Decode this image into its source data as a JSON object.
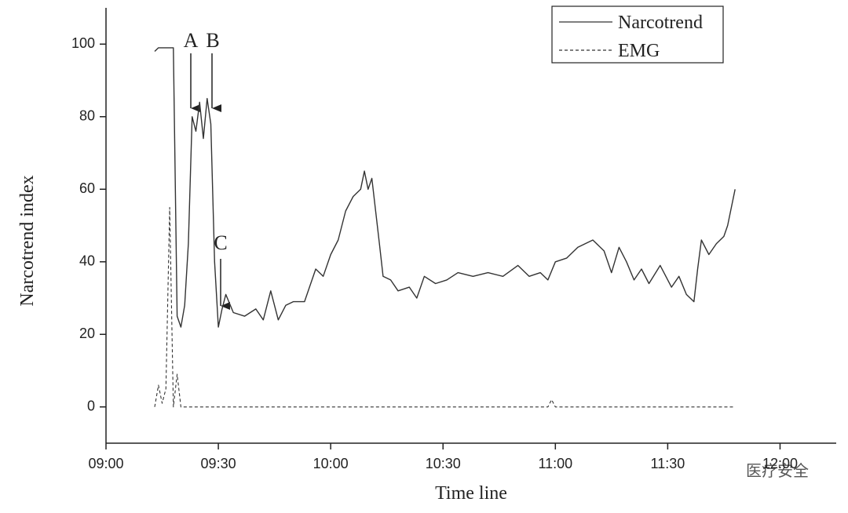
{
  "chart_data": {
    "type": "line",
    "x_label": "Time line",
    "y_label": "Narcotrend index",
    "xlim": [
      "09:00",
      "12:15"
    ],
    "xticks": [
      "09:00",
      "09:30",
      "10:00",
      "10:30",
      "11:00",
      "11:30",
      "12:00"
    ],
    "ylim": [
      -10,
      110
    ],
    "yticks": [
      0,
      20,
      40,
      60,
      80,
      100
    ],
    "legend": "upper right",
    "annotations": [
      "A",
      "B",
      "C"
    ],
    "watermark": "医疗安全",
    "series": [
      {
        "name": "Narcotrend",
        "color": "#333333",
        "dash": "solid",
        "x": [
          "09:13",
          "09:14",
          "09:18",
          "09:19",
          "09:20",
          "09:21",
          "09:22",
          "09:23",
          "09:24",
          "09:25",
          "09:26",
          "09:27",
          "09:28",
          "09:29",
          "09:30",
          "09:31",
          "09:32",
          "09:34",
          "09:37",
          "09:40",
          "09:42",
          "09:44",
          "09:46",
          "09:48",
          "09:50",
          "09:53",
          "09:56",
          "09:58",
          "10:00",
          "10:02",
          "10:04",
          "10:06",
          "10:08",
          "10:09",
          "10:10",
          "10:11",
          "10:13",
          "10:14",
          "10:16",
          "10:18",
          "10:21",
          "10:23",
          "10:25",
          "10:28",
          "10:31",
          "10:34",
          "10:38",
          "10:42",
          "10:46",
          "10:50",
          "10:53",
          "10:56",
          "10:58",
          "11:00",
          "11:03",
          "11:06",
          "11:10",
          "11:13",
          "11:15",
          "11:17",
          "11:19",
          "11:21",
          "11:23",
          "11:25",
          "11:28",
          "11:31",
          "11:33",
          "11:35",
          "11:37",
          "11:38",
          "11:39",
          "11:41",
          "11:43",
          "11:45",
          "11:46",
          "11:48"
        ],
        "values": [
          98,
          99,
          99,
          25,
          22,
          28,
          45,
          80,
          76,
          84,
          74,
          85,
          78,
          40,
          22,
          27,
          31,
          26,
          25,
          27,
          24,
          32,
          24,
          28,
          29,
          29,
          38,
          36,
          42,
          46,
          54,
          58,
          60,
          65,
          60,
          63,
          45,
          36,
          35,
          32,
          33,
          30,
          36,
          34,
          35,
          37,
          36,
          37,
          36,
          39,
          36,
          37,
          35,
          40,
          41,
          44,
          46,
          43,
          37,
          44,
          40,
          35,
          38,
          34,
          39,
          33,
          36,
          31,
          29,
          38,
          46,
          42,
          45,
          47,
          50,
          60
        ]
      },
      {
        "name": "EMG",
        "color": "#333333",
        "dash": "dashed",
        "x": [
          "09:13",
          "09:14",
          "09:15",
          "09:16",
          "09:17",
          "09:18",
          "09:19",
          "09:20",
          "10:58",
          "10:59",
          "11:00",
          "11:48"
        ],
        "values": [
          0,
          6,
          1,
          5,
          55,
          0,
          9,
          0,
          0,
          2,
          0,
          0
        ]
      }
    ]
  }
}
